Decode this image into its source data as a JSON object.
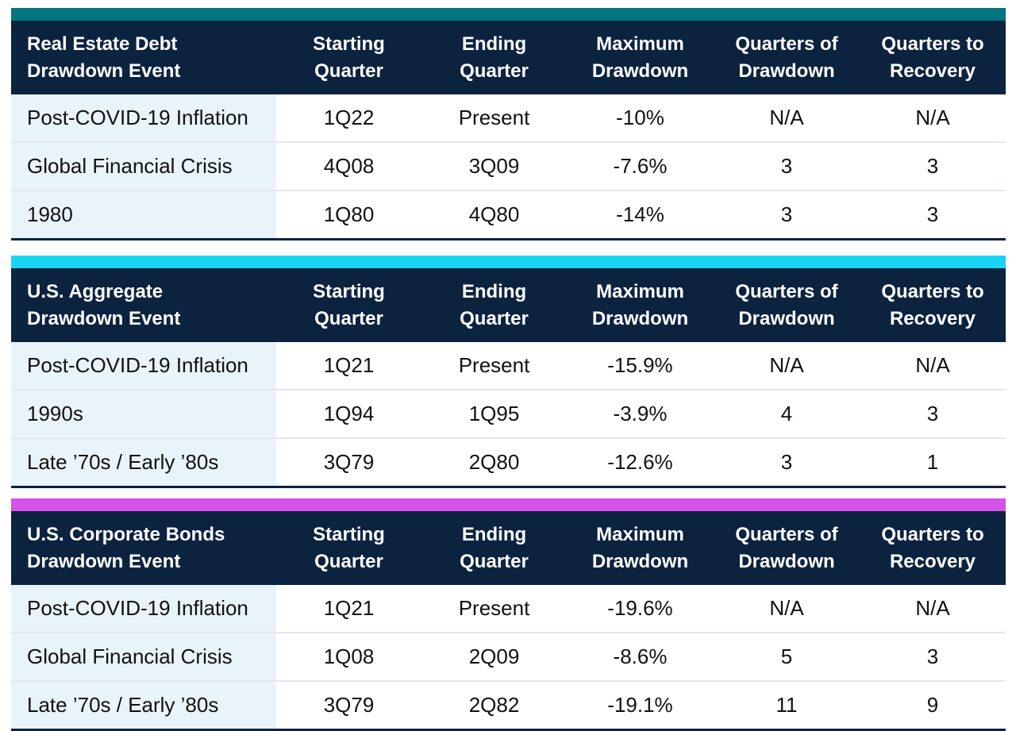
{
  "colors": {
    "header_bg": "#0c2340",
    "first_col_bg": "#e9f3fa",
    "accent_real_estate": "#047682",
    "accent_aggregate": "#19d3f5",
    "accent_corporate": "#d552e8"
  },
  "tables": [
    {
      "accent": "#047682",
      "headers": [
        "Real Estate Debt\nDrawdown Event",
        "Starting\nQuarter",
        "Ending\nQuarter",
        "Maximum\nDrawdown",
        "Quarters of\nDrawdown",
        "Quarters to\nRecovery"
      ],
      "rows": [
        [
          "Post-COVID-19 Inflation",
          "1Q22",
          "Present",
          "-10%",
          "N/A",
          "N/A"
        ],
        [
          "Global Financial Crisis",
          "4Q08",
          "3Q09",
          "-7.6%",
          "3",
          "3"
        ],
        [
          "1980",
          "1Q80",
          "4Q80",
          "-14%",
          "3",
          "3"
        ]
      ]
    },
    {
      "accent": "#19d3f5",
      "headers": [
        "U.S. Aggregate\nDrawdown Event",
        "Starting\nQuarter",
        "Ending\nQuarter",
        "Maximum\nDrawdown",
        "Quarters of\nDrawdown",
        "Quarters to\nRecovery"
      ],
      "rows": [
        [
          "Post-COVID-19 Inflation",
          "1Q21",
          "Present",
          "-15.9%",
          "N/A",
          "N/A"
        ],
        [
          "1990s",
          "1Q94",
          "1Q95",
          "-3.9%",
          "4",
          "3"
        ],
        [
          "Late ’70s / Early ’80s",
          "3Q79",
          "2Q80",
          "-12.6%",
          "3",
          "1"
        ]
      ]
    },
    {
      "accent": "#d552e8",
      "headers": [
        "U.S. Corporate Bonds\nDrawdown Event",
        "Starting\nQuarter",
        "Ending\nQuarter",
        "Maximum\nDrawdown",
        "Quarters of\nDrawdown",
        "Quarters to\nRecovery"
      ],
      "rows": [
        [
          "Post-COVID-19 Inflation",
          "1Q21",
          "Present",
          "-19.6%",
          "N/A",
          "N/A"
        ],
        [
          "Global Financial Crisis",
          "1Q08",
          "2Q09",
          "-8.6%",
          "5",
          "3"
        ],
        [
          "Late ’70s / Early ’80s",
          "3Q79",
          "2Q82",
          "-19.1%",
          "11",
          "9"
        ]
      ]
    }
  ]
}
